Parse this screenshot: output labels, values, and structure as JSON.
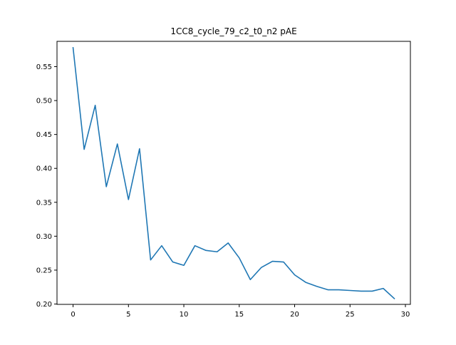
{
  "chart_data": {
    "type": "line",
    "title": "1CC8_cycle_79_c2_t0_n2 pAE",
    "xlabel": "",
    "ylabel": "",
    "xlim": [
      -1.45,
      30.45
    ],
    "ylim": [
      0.1995,
      0.5873
    ],
    "xticks": [
      0,
      5,
      10,
      15,
      20,
      25,
      30
    ],
    "yticks": [
      0.2,
      0.25,
      0.3,
      0.35,
      0.4,
      0.45,
      0.5,
      0.55
    ],
    "xtick_labels": [
      "0",
      "5",
      "10",
      "15",
      "20",
      "25",
      "30"
    ],
    "ytick_labels": [
      "0.20",
      "0.25",
      "0.30",
      "0.35",
      "0.40",
      "0.45",
      "0.50",
      "0.55"
    ],
    "grid": false,
    "legend": "none",
    "line_color": "#1f77b4",
    "series": [
      {
        "name": "pAE",
        "x": [
          0,
          1,
          2,
          3,
          4,
          5,
          6,
          7,
          8,
          9,
          10,
          11,
          12,
          13,
          14,
          15,
          16,
          17,
          18,
          19,
          20,
          21,
          22,
          23,
          24,
          25,
          26,
          27,
          28,
          29
        ],
        "values": [
          0.578,
          0.428,
          0.493,
          0.373,
          0.436,
          0.354,
          0.429,
          0.265,
          0.286,
          0.262,
          0.257,
          0.286,
          0.279,
          0.277,
          0.29,
          0.268,
          0.236,
          0.254,
          0.263,
          0.262,
          0.243,
          0.232,
          0.226,
          0.221,
          0.221,
          0.22,
          0.219,
          0.219,
          0.223,
          0.208
        ]
      }
    ]
  }
}
